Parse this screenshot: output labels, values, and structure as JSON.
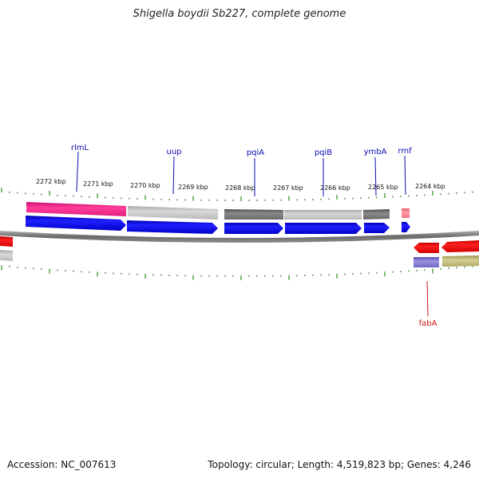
{
  "title": "Shigella boydii Sb227, complete genome",
  "footer": {
    "accession": "Accession: NC_007613",
    "stats": "Topology: circular; Length: 4,519,823 bp; Genes: 4,246"
  },
  "colors": {
    "tick": "#2e8b1e",
    "backbone": "#808080",
    "forward_cds": "#1010e0",
    "reverse_cds": "#e01010",
    "label_forward": "#0a0ab4",
    "label_reverse": "#d01010"
  },
  "kbp_labels": [
    "2272 kbp",
    "2271 kbp",
    "2270 kbp",
    "2269 kbp",
    "2268 kbp",
    "2267 kbp",
    "2266 kbp",
    "2265 kbp",
    "2264 kbp"
  ],
  "genes": [
    {
      "name": "rlmL",
      "strand": "forward"
    },
    {
      "name": "uup",
      "strand": "forward"
    },
    {
      "name": "pqiA",
      "strand": "forward"
    },
    {
      "name": "pqiB",
      "strand": "forward"
    },
    {
      "name": "ymbA",
      "strand": "forward"
    },
    {
      "name": "rmf",
      "strand": "forward"
    },
    {
      "name": "fabA",
      "strand": "reverse"
    }
  ]
}
